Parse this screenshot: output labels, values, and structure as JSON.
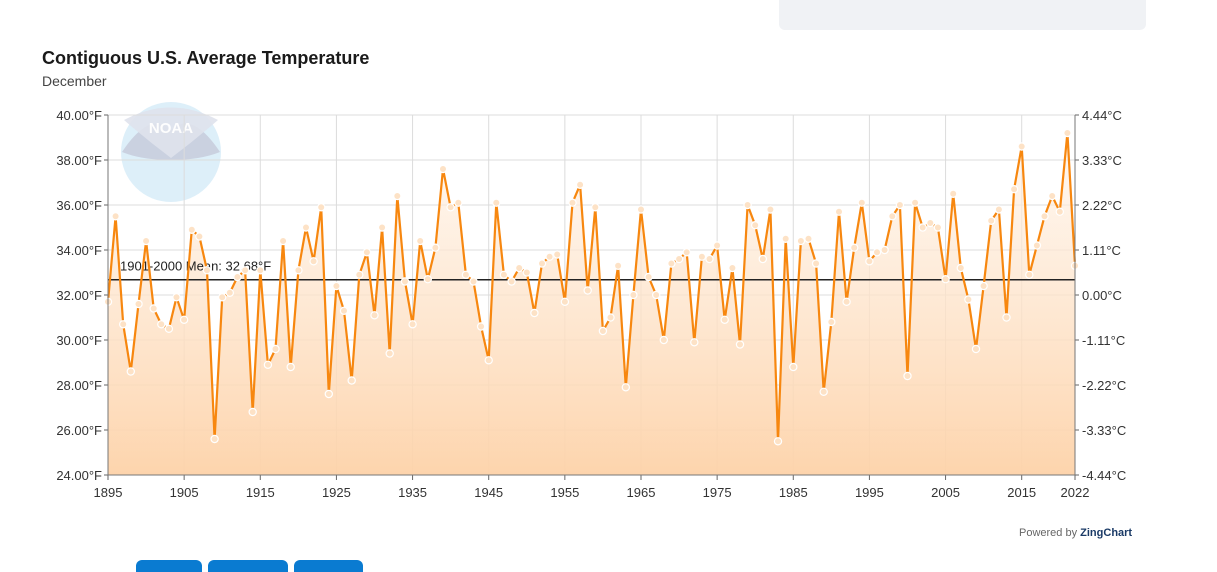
{
  "chart_data": {
    "type": "line",
    "title": "Contiguous U.S. Average Temperature",
    "subtitle": "December",
    "x_ticks": [
      "1895",
      "1905",
      "1915",
      "1925",
      "1935",
      "1945",
      "1955",
      "1965",
      "1975",
      "1985",
      "1995",
      "2005",
      "2015",
      "2022"
    ],
    "y_left_ticks": [
      "24.00°F",
      "26.00°F",
      "28.00°F",
      "30.00°F",
      "32.00°F",
      "34.00°F",
      "36.00°F",
      "38.00°F",
      "40.00°F"
    ],
    "y_right_ticks": [
      "-4.44°C",
      "-3.33°C",
      "-2.22°C",
      "-1.11°C",
      "0.00°C",
      "1.11°C",
      "2.22°C",
      "3.33°C",
      "4.44°C"
    ],
    "ylim": [
      24,
      40
    ],
    "xlim": [
      1895,
      2022
    ],
    "grid": true,
    "mean_line": {
      "label": "1901-2000 Mean: 32.68°F",
      "value": 32.68
    },
    "line_color": "#f7870f",
    "fill_color": "#fdd7b4",
    "series": [
      {
        "x_start": 1895,
        "values": [
          31.7,
          35.5,
          30.7,
          28.6,
          31.6,
          34.4,
          31.4,
          30.7,
          30.5,
          31.9,
          30.9,
          34.9,
          34.6,
          33.1,
          25.6,
          31.9,
          32.1,
          32.8,
          33.1,
          26.8,
          33.1,
          28.9,
          29.6,
          34.4,
          28.8,
          33.1,
          35.0,
          33.5,
          35.9,
          27.6,
          32.4,
          31.3,
          28.2,
          32.9,
          33.9,
          31.1,
          35.0,
          29.4,
          36.4,
          32.6,
          30.7,
          34.4,
          32.7,
          34.1,
          37.6,
          35.9,
          36.1,
          32.9,
          32.6,
          30.6,
          29.1,
          36.1,
          32.9,
          32.6,
          33.2,
          33.0,
          31.2,
          33.4,
          33.7,
          33.8,
          31.7,
          36.1,
          36.9,
          32.2,
          35.9,
          30.4,
          31.0,
          33.3,
          27.9,
          32.0,
          35.8,
          32.8,
          32.0,
          30.0,
          33.4,
          33.6,
          33.9,
          29.9,
          33.7,
          33.6,
          34.2,
          30.9,
          33.2,
          29.8,
          36.0,
          35.1,
          33.6,
          35.8,
          25.5,
          34.5,
          28.8,
          34.4,
          34.5,
          33.4,
          27.7,
          30.8,
          35.7,
          31.7,
          34.1,
          36.1,
          33.5,
          33.9,
          34.0,
          35.5,
          36.0,
          28.4,
          36.1,
          35.0,
          35.2,
          35.0,
          32.7,
          36.5,
          33.2,
          31.8,
          29.6,
          32.4,
          35.3,
          35.8,
          31.0,
          36.7,
          38.6,
          32.9,
          34.2,
          35.5,
          36.4,
          35.7,
          39.2,
          33.3
        ]
      }
    ]
  },
  "footer": {
    "powered_prefix": "Powered by",
    "powered_brand": "ZingChart"
  },
  "logo": {
    "text": "NOAA"
  }
}
